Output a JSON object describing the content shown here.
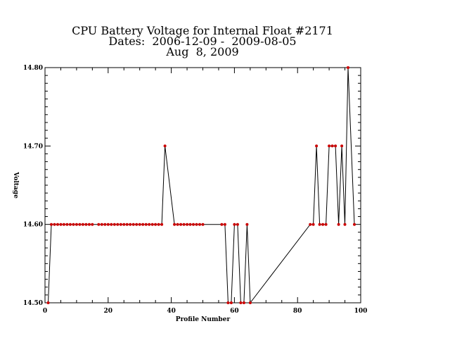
{
  "chart_data": {
    "type": "line",
    "title": "CPU Battery Voltage for Internal Float #2171",
    "subtitle": "Dates:  2006-12-09 -  2009-08-05",
    "date_line": "Aug  8, 2009",
    "xlabel": "Profile Number",
    "ylabel": "Voltage",
    "xlim": [
      0,
      100
    ],
    "ylim": [
      14.5,
      14.8
    ],
    "x_ticks": [
      "0",
      "20",
      "40",
      "60",
      "80",
      "100"
    ],
    "y_ticks": [
      "14.50",
      "14.60",
      "14.70",
      "14.80"
    ],
    "series": [
      {
        "color": "#cc0000",
        "line_color": "#000000",
        "points": [
          [
            1,
            14.5
          ],
          [
            2,
            14.6
          ],
          [
            3,
            14.6
          ],
          [
            4,
            14.6
          ],
          [
            5,
            14.6
          ],
          [
            6,
            14.6
          ],
          [
            7,
            14.6
          ],
          [
            8,
            14.6
          ],
          [
            9,
            14.6
          ],
          [
            10,
            14.6
          ],
          [
            11,
            14.6
          ],
          [
            12,
            14.6
          ],
          [
            13,
            14.6
          ],
          [
            14,
            14.6
          ],
          [
            15,
            14.6
          ],
          [
            17,
            14.6
          ],
          [
            18,
            14.6
          ],
          [
            19,
            14.6
          ],
          [
            20,
            14.6
          ],
          [
            21,
            14.6
          ],
          [
            22,
            14.6
          ],
          [
            23,
            14.6
          ],
          [
            24,
            14.6
          ],
          [
            25,
            14.6
          ],
          [
            26,
            14.6
          ],
          [
            27,
            14.6
          ],
          [
            28,
            14.6
          ],
          [
            29,
            14.6
          ],
          [
            30,
            14.6
          ],
          [
            31,
            14.6
          ],
          [
            32,
            14.6
          ],
          [
            33,
            14.6
          ],
          [
            34,
            14.6
          ],
          [
            35,
            14.6
          ],
          [
            36,
            14.6
          ],
          [
            37,
            14.6
          ],
          [
            38,
            14.7
          ],
          [
            41,
            14.6
          ],
          [
            42,
            14.6
          ],
          [
            43,
            14.6
          ],
          [
            44,
            14.6
          ],
          [
            45,
            14.6
          ],
          [
            46,
            14.6
          ],
          [
            47,
            14.6
          ],
          [
            48,
            14.6
          ],
          [
            49,
            14.6
          ],
          [
            50,
            14.6
          ],
          [
            56,
            14.6
          ],
          [
            57,
            14.6
          ],
          [
            58,
            14.5
          ],
          [
            59,
            14.5
          ],
          [
            60,
            14.6
          ],
          [
            61,
            14.6
          ],
          [
            62,
            14.5
          ],
          [
            63,
            14.5
          ],
          [
            64,
            14.6
          ],
          [
            65,
            14.5
          ],
          [
            84,
            14.6
          ],
          [
            85,
            14.6
          ],
          [
            86,
            14.7
          ],
          [
            87,
            14.6
          ],
          [
            88,
            14.6
          ],
          [
            89,
            14.6
          ],
          [
            90,
            14.7
          ],
          [
            91,
            14.7
          ],
          [
            92,
            14.7
          ],
          [
            93,
            14.6
          ],
          [
            94,
            14.7
          ],
          [
            95,
            14.6
          ],
          [
            96,
            14.8
          ],
          [
            98,
            14.6
          ]
        ]
      }
    ],
    "grid": false,
    "legend": "none"
  }
}
